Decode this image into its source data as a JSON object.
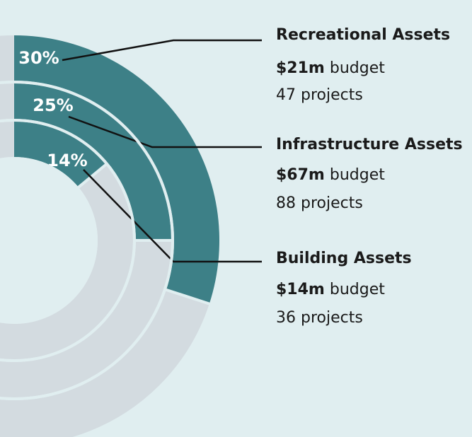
{
  "chart_data": {
    "type": "radial",
    "color": "#3d8087",
    "track_color": "#d3dbe0",
    "items": [
      {
        "name": "Recreational Assets",
        "value": 30,
        "value_label": "30%",
        "budget": "$21m",
        "budget_word": "budget",
        "projects": "47 projects"
      },
      {
        "name": "Infrastructure Assets",
        "value": 25,
        "value_label": "25%",
        "budget": "$67m",
        "budget_word": "budget",
        "projects": "88 projects"
      },
      {
        "name": "Building Assets",
        "value": 14,
        "value_label": "14%",
        "budget": "$14m",
        "budget_word": "budget",
        "projects": "36 projects"
      }
    ],
    "vlim": [
      0,
      100
    ]
  }
}
